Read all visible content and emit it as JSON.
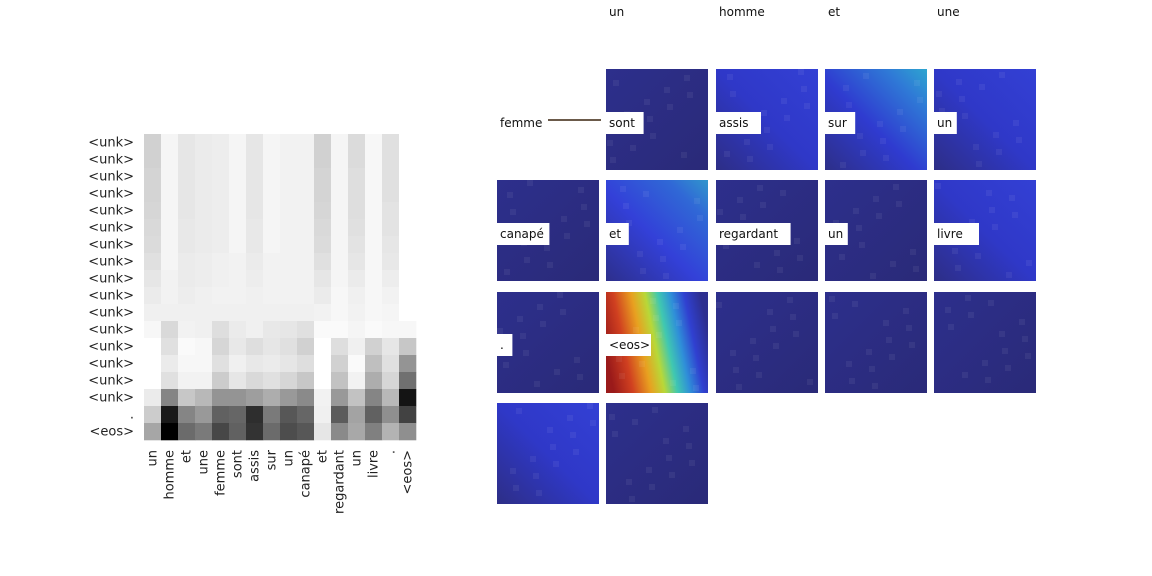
{
  "chart_data": [
    {
      "type": "heatmap",
      "title": "",
      "xlabel": "",
      "ylabel": "",
      "x_tick_labels": [
        "un",
        "homme",
        "et",
        "une",
        "femme",
        "sont",
        "assis",
        "sur",
        "un",
        "canapé",
        "et",
        "regardant",
        "un",
        "livre",
        ".",
        "<eos>"
      ],
      "y_tick_labels": [
        "<unk>",
        "<unk>",
        "<unk>",
        "<unk>",
        "<unk>",
        "<unk>",
        "<unk>",
        "<unk>",
        "<unk>",
        "<unk>",
        "<unk>",
        "<unk>",
        "<unk>",
        "<unk>",
        "<unk>",
        "<unk>",
        ".",
        "<eos>"
      ],
      "colormap": "grayscale (white = 0, black = max)",
      "values": [
        [
          0.18,
          0.04,
          0.1,
          0.08,
          0.07,
          0.04,
          0.1,
          0.04,
          0.05,
          0.05,
          0.18,
          0.04,
          0.14,
          0.03,
          0.12,
          0.0
        ],
        [
          0.18,
          0.04,
          0.1,
          0.08,
          0.07,
          0.04,
          0.1,
          0.04,
          0.05,
          0.05,
          0.18,
          0.04,
          0.14,
          0.03,
          0.12,
          0.0
        ],
        [
          0.17,
          0.04,
          0.1,
          0.08,
          0.07,
          0.04,
          0.1,
          0.04,
          0.05,
          0.05,
          0.17,
          0.04,
          0.13,
          0.03,
          0.12,
          0.0
        ],
        [
          0.17,
          0.04,
          0.1,
          0.08,
          0.07,
          0.04,
          0.1,
          0.04,
          0.05,
          0.05,
          0.17,
          0.04,
          0.13,
          0.03,
          0.12,
          0.0
        ],
        [
          0.16,
          0.04,
          0.1,
          0.08,
          0.07,
          0.04,
          0.1,
          0.04,
          0.05,
          0.05,
          0.16,
          0.04,
          0.13,
          0.03,
          0.11,
          0.0
        ],
        [
          0.15,
          0.04,
          0.09,
          0.08,
          0.07,
          0.04,
          0.09,
          0.04,
          0.05,
          0.05,
          0.15,
          0.04,
          0.12,
          0.03,
          0.11,
          0.0
        ],
        [
          0.14,
          0.04,
          0.09,
          0.08,
          0.07,
          0.04,
          0.09,
          0.04,
          0.05,
          0.05,
          0.14,
          0.04,
          0.11,
          0.03,
          0.1,
          0.0
        ],
        [
          0.12,
          0.04,
          0.08,
          0.07,
          0.06,
          0.05,
          0.08,
          0.05,
          0.05,
          0.05,
          0.12,
          0.04,
          0.1,
          0.03,
          0.09,
          0.0
        ],
        [
          0.1,
          0.05,
          0.08,
          0.07,
          0.06,
          0.05,
          0.07,
          0.05,
          0.05,
          0.05,
          0.1,
          0.04,
          0.08,
          0.03,
          0.07,
          0.0
        ],
        [
          0.08,
          0.05,
          0.07,
          0.06,
          0.05,
          0.05,
          0.06,
          0.05,
          0.05,
          0.05,
          0.08,
          0.03,
          0.06,
          0.03,
          0.05,
          0.0
        ],
        [
          0.06,
          0.06,
          0.06,
          0.06,
          0.06,
          0.06,
          0.06,
          0.06,
          0.06,
          0.06,
          0.05,
          0.03,
          0.05,
          0.03,
          0.04,
          0.0
        ],
        [
          0.03,
          0.15,
          0.05,
          0.06,
          0.13,
          0.08,
          0.06,
          0.09,
          0.1,
          0.12,
          0.02,
          0.02,
          0.04,
          0.02,
          0.03,
          0.03
        ],
        [
          0.0,
          0.12,
          0.02,
          0.03,
          0.16,
          0.09,
          0.13,
          0.1,
          0.12,
          0.18,
          0.0,
          0.13,
          0.06,
          0.18,
          0.1,
          0.22
        ],
        [
          0.0,
          0.08,
          0.03,
          0.03,
          0.12,
          0.06,
          0.09,
          0.08,
          0.1,
          0.13,
          0.0,
          0.18,
          0.02,
          0.25,
          0.12,
          0.42
        ],
        [
          0.0,
          0.12,
          0.05,
          0.05,
          0.2,
          0.1,
          0.15,
          0.12,
          0.16,
          0.22,
          0.0,
          0.24,
          0.05,
          0.32,
          0.16,
          0.56
        ],
        [
          0.08,
          0.48,
          0.22,
          0.28,
          0.42,
          0.42,
          0.38,
          0.32,
          0.4,
          0.46,
          0.05,
          0.4,
          0.24,
          0.48,
          0.28,
          0.92
        ],
        [
          0.2,
          0.9,
          0.48,
          0.4,
          0.62,
          0.6,
          0.82,
          0.52,
          0.66,
          0.6,
          0.06,
          0.64,
          0.36,
          0.62,
          0.44,
          0.74
        ],
        [
          0.35,
          1.0,
          0.58,
          0.52,
          0.72,
          0.62,
          0.8,
          0.58,
          0.7,
          0.66,
          0.1,
          0.46,
          0.34,
          0.5,
          0.3,
          0.44
        ]
      ]
    },
    {
      "type": "heatmap",
      "title": "",
      "description_panels": "spatial attention maps over image, one per generated word",
      "top_words": [
        "un",
        "homme",
        "et",
        "une"
      ],
      "panel_words": [
        "femme",
        "sont",
        "assis",
        "sur",
        "un",
        "canapé",
        "et",
        "regardant",
        "un",
        "livre",
        ".",
        "<eos>",
        "",
        "",
        "",
        "",
        ""
      ],
      "colormap": "jet overlay (blue = low, red = high)"
    }
  ]
}
